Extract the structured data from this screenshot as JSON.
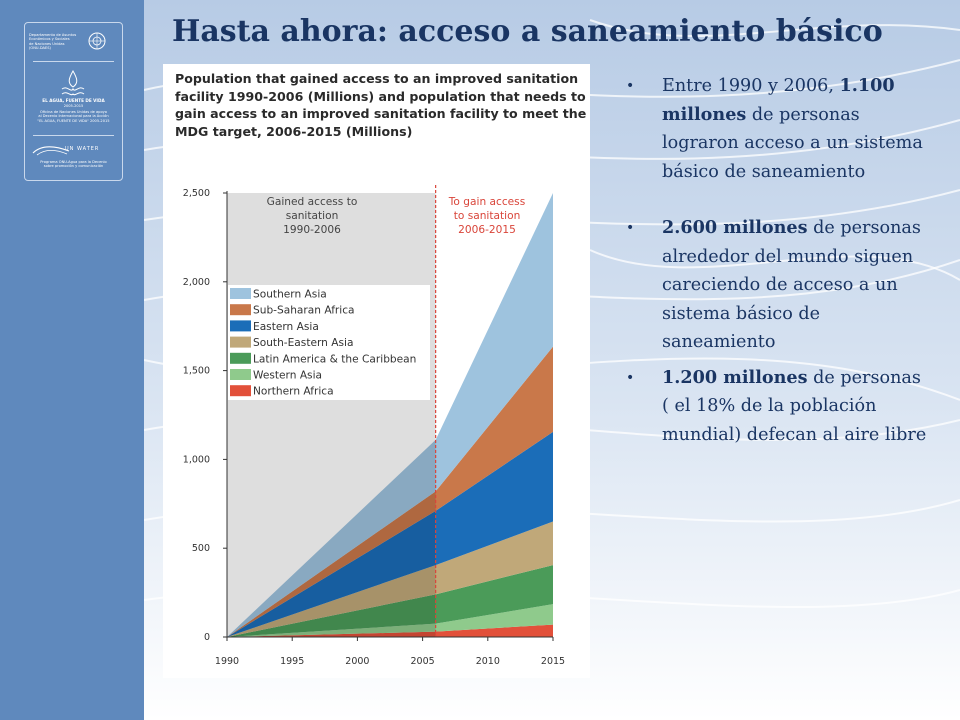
{
  "slide": {
    "title": "Hasta ahora: acceso a saneamiento básico",
    "colors": {
      "sidebar": "#5f89bd",
      "title": "#1a3563",
      "background_waves": "#c7d6ea"
    }
  },
  "logo": {
    "un_dept_lines": [
      "Departamento de Asuntos",
      "Económicos y Sociales",
      "de Naciones Unidas",
      "(ONU-DAES)"
    ],
    "decade_title": "EL AGUA, FUENTE DE VIDA",
    "decade_years": "2005-2015",
    "office_lines": [
      "Oficina de Naciones Unidas de apoyo",
      "al Decenio Internacional para la Acción",
      "\"EL AGUA, FUENTE DE VIDA\" 2005-2015"
    ],
    "unwater_name": "UN WATER",
    "unwater_lines": [
      "Programa ONU-Agua para la Decenio",
      "sobre promoción y comunicación"
    ]
  },
  "bullets": [
    {
      "pre": "Entre 1990 y 2006, ",
      "bold": "1.100 millones",
      "post": " de personas lograron acceso a un sistema básico de saneamiento"
    },
    {
      "pre": "",
      "bold": "2.600 millones",
      "post": " de personas alrededor del mundo siguen careciendo de  acceso a un sistema básico de saneamiento"
    },
    {
      "pre": "",
      "bold": "1.200 millones",
      "post": " de personas ( el 18% de la población mundial) defecan al aire libre"
    }
  ],
  "chart_data": {
    "type": "area",
    "title": "Population that gained access to an improved sanitation facility 1990-2006 (Millions) and population that needs to gain access to an improved sanitation facility to meet the MDG target, 2006-2015 (Millions)",
    "x": [
      1990,
      2006,
      2015
    ],
    "xticks": [
      1990,
      1995,
      2000,
      2005,
      2010,
      2015
    ],
    "yticks": [
      "0",
      "500",
      "1,000",
      "1,500",
      "2,000",
      "2,500"
    ],
    "ylim": [
      0,
      2500
    ],
    "xlim": [
      1990,
      2015
    ],
    "split_year": 2006,
    "grid": false,
    "legend_position": "left-middle",
    "annotations": {
      "gained": [
        "Gained access to",
        "sanitation",
        "1990-2006"
      ],
      "to_gain": [
        "To gain access",
        "to sanitation",
        "2006-2015"
      ]
    },
    "series": [
      {
        "name": "Northern Africa",
        "values": [
          0,
          30,
          70
        ],
        "color": "#e2503a"
      },
      {
        "name": "Western Asia",
        "values": [
          0,
          45,
          115
        ],
        "color": "#8fca8c"
      },
      {
        "name": "Latin America & the Caribbean",
        "values": [
          0,
          165,
          220
        ],
        "color": "#4b9b59"
      },
      {
        "name": "South-Eastern Asia",
        "values": [
          0,
          165,
          245
        ],
        "color": "#c0a879"
      },
      {
        "name": "Eastern Asia",
        "values": [
          0,
          305,
          505
        ],
        "color": "#1b6db8"
      },
      {
        "name": "Sub-Saharan Africa",
        "values": [
          0,
          110,
          480
        ],
        "color": "#c9784a"
      },
      {
        "name": "Southern Asia",
        "values": [
          0,
          290,
          865
        ],
        "color": "#9ec3de"
      }
    ]
  }
}
